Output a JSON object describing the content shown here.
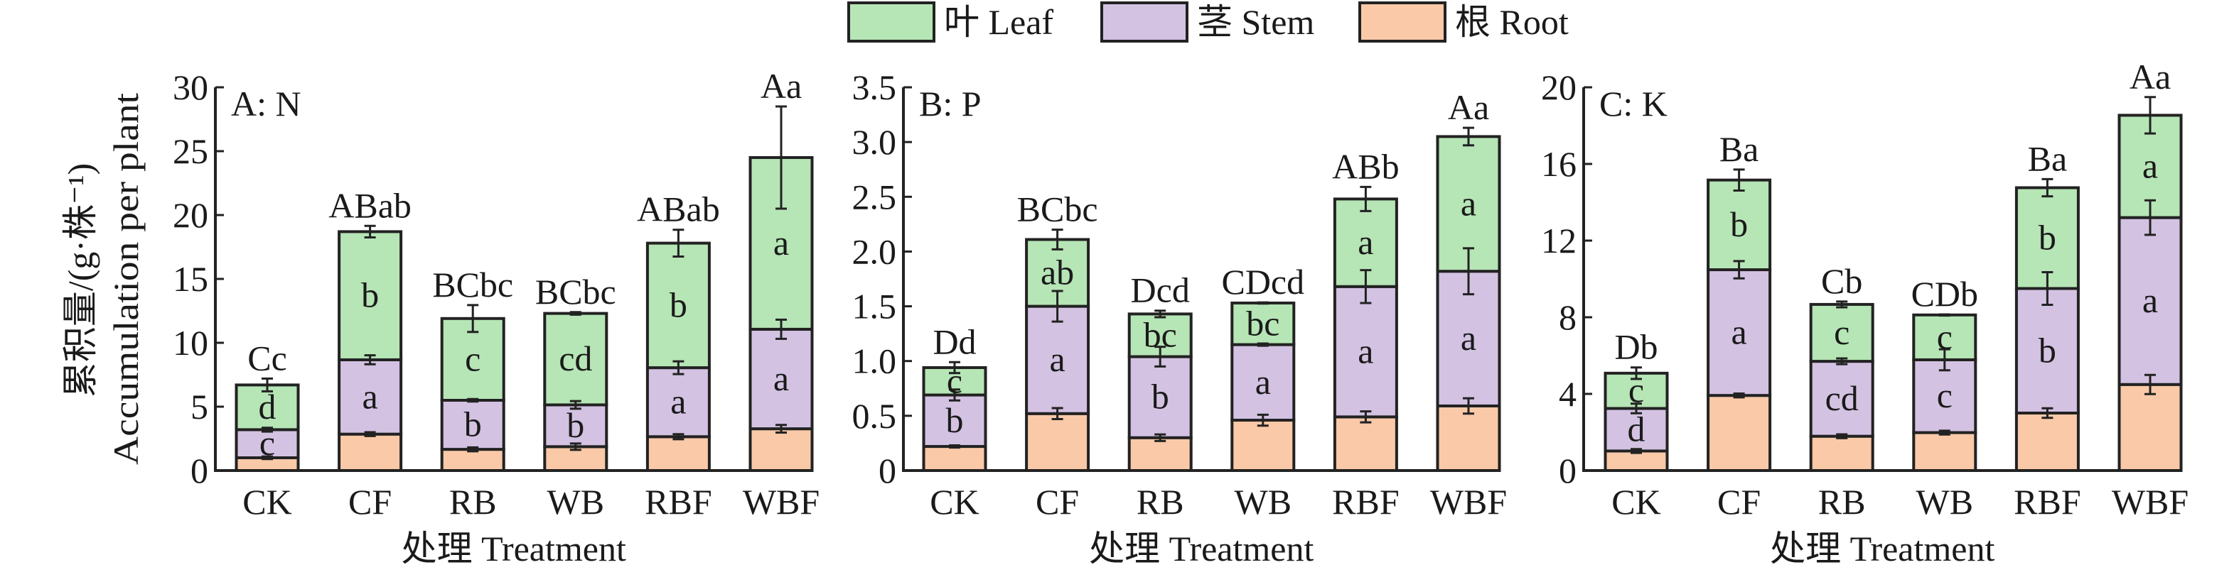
{
  "legend": [
    {
      "label": "叶 Leaf",
      "color": "#b6e5b6"
    },
    {
      "label": "茎 Stem",
      "color": "#d3c2e2"
    },
    {
      "label": "根 Root",
      "color": "#f9c9a8"
    }
  ],
  "ylabel_cn": "累积量/(g·株⁻¹)",
  "ylabel_en": "Accumulation per plant",
  "chart_data": [
    {
      "type": "bar",
      "stacked": true,
      "title": "A: N",
      "xlabel": "处理 Treatment",
      "ylabel": "累积量/(g·株⁻¹) Accumulation per plant",
      "ylim": [
        0,
        30
      ],
      "yticks": [
        "0",
        "5",
        "10",
        "15",
        "20",
        "25",
        "30"
      ],
      "ytick_values": [
        0,
        5,
        10,
        15,
        20,
        25,
        30
      ],
      "categories": [
        "CK",
        "CF",
        "RB",
        "WB",
        "RBF",
        "WBF"
      ],
      "series": [
        {
          "name": "根 Root",
          "values": [
            1.0,
            2.85,
            1.66,
            1.87,
            2.65,
            3.27
          ],
          "errors": [
            0.1,
            0.15,
            0.15,
            0.25,
            0.2,
            0.3
          ],
          "letters": [
            "",
            "",
            "",
            "",
            "",
            ""
          ]
        },
        {
          "name": "茎 Stem",
          "values": [
            2.2,
            5.82,
            3.84,
            3.27,
            5.4,
            7.79
          ],
          "errors": [
            0.15,
            0.35,
            0.1,
            0.3,
            0.5,
            0.75
          ],
          "letters": [
            "c",
            "a",
            "b",
            "b",
            "a",
            "a"
          ]
        },
        {
          "name": "叶 Leaf",
          "values": [
            3.5,
            10.03,
            6.4,
            7.16,
            9.75,
            13.44
          ],
          "errors": [
            0.5,
            0.45,
            1.05,
            0.1,
            1.05,
            4.0
          ],
          "letters": [
            "d",
            "b",
            "c",
            "cd",
            "b",
            "a"
          ]
        }
      ],
      "total_letters": [
        "Cc",
        "ABab",
        "BCbc",
        "BCbc",
        "ABab",
        "Aa"
      ]
    },
    {
      "type": "bar",
      "stacked": true,
      "title": "B: P",
      "xlabel": "处理 Treatment",
      "ylabel": "",
      "ylim": [
        0,
        3.5
      ],
      "yticks": [
        "0",
        "0.5",
        "1.0",
        "1.5",
        "2.0",
        "2.5",
        "3.0",
        "3.5"
      ],
      "ytick_values": [
        0,
        0.5,
        1,
        1.5,
        2,
        2.5,
        3,
        3.5
      ],
      "categories": [
        "CK",
        "CF",
        "RB",
        "WB",
        "RBF",
        "WBF"
      ],
      "series": [
        {
          "name": "根 Root",
          "values": [
            0.22,
            0.52,
            0.3,
            0.46,
            0.49,
            0.59
          ],
          "errors": [
            0.01,
            0.05,
            0.03,
            0.05,
            0.05,
            0.07
          ],
          "letters": [
            "",
            "",
            "",
            "",
            "",
            ""
          ]
        },
        {
          "name": "茎 Stem",
          "values": [
            0.47,
            0.98,
            0.74,
            0.69,
            1.19,
            1.23
          ],
          "errors": [
            0.05,
            0.14,
            0.09,
            0.01,
            0.15,
            0.21
          ],
          "letters": [
            "b",
            "a",
            "b",
            "a",
            "a",
            "a"
          ]
        },
        {
          "name": "叶 Leaf",
          "values": [
            0.25,
            0.61,
            0.39,
            0.38,
            0.8,
            1.23
          ],
          "errors": [
            0.05,
            0.09,
            0.03,
            0.005,
            0.11,
            0.08
          ],
          "letters": [
            "c",
            "ab",
            "bc",
            "bc",
            "a",
            "a"
          ]
        }
      ],
      "total_letters": [
        "Dd",
        "BCbc",
        "Dcd",
        "CDcd",
        "ABb",
        "Aa"
      ]
    },
    {
      "type": "bar",
      "stacked": true,
      "title": "C: K",
      "xlabel": "处理 Treatment",
      "ylabel": "",
      "ylim": [
        0,
        20
      ],
      "yticks": [
        "0",
        "4",
        "8",
        "12",
        "16",
        "20"
      ],
      "ytick_values": [
        0,
        4,
        8,
        12,
        16,
        20
      ],
      "categories": [
        "CK",
        "CF",
        "RB",
        "WB",
        "RBF",
        "WBF"
      ],
      "series": [
        {
          "name": "根 Root",
          "values": [
            1.02,
            3.92,
            1.79,
            1.98,
            3.0,
            4.49
          ],
          "errors": [
            0.1,
            0.1,
            0.1,
            0.1,
            0.25,
            0.5
          ],
          "letters": [
            "",
            "",
            "",
            "",
            "",
            ""
          ]
        },
        {
          "name": "茎 Stem",
          "values": [
            2.22,
            6.56,
            3.91,
            3.8,
            6.5,
            8.71
          ],
          "errors": [
            0.25,
            0.45,
            0.15,
            0.55,
            0.85,
            0.9
          ],
          "letters": [
            "d",
            "a",
            "cd",
            "c",
            "b",
            "a"
          ]
        },
        {
          "name": "叶 Leaf",
          "values": [
            1.84,
            4.68,
            2.97,
            2.34,
            5.26,
            5.34
          ],
          "errors": [
            0.3,
            0.55,
            0.15,
            0.03,
            0.45,
            0.95
          ],
          "letters": [
            "c",
            "b",
            "c",
            "c",
            "b",
            "a"
          ]
        }
      ],
      "total_letters": [
        "Db",
        "Ba",
        "Cb",
        "CDb",
        "Ba",
        "Aa"
      ]
    }
  ]
}
